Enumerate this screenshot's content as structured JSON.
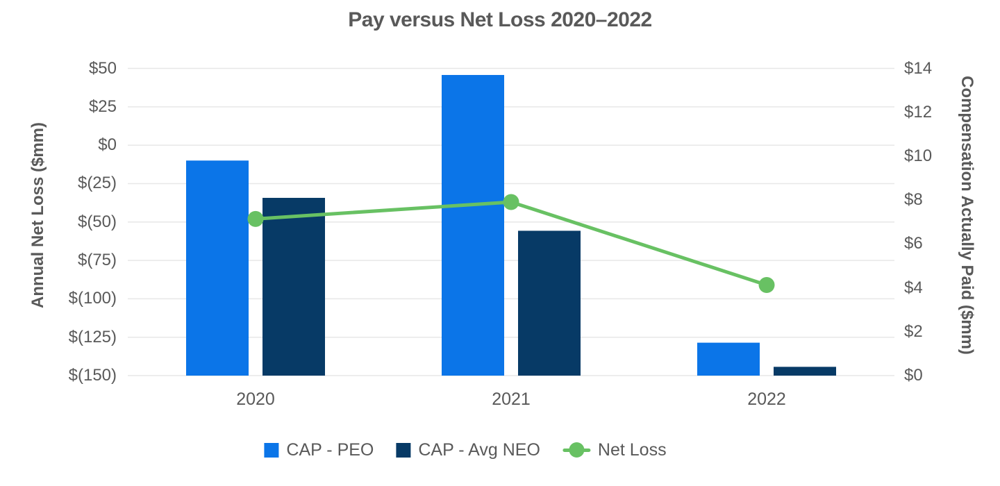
{
  "chart_data": {
    "type": "combo-bar-line",
    "title": "Pay versus Net Loss 2020–2022",
    "categories": [
      "2020",
      "2021",
      "2022"
    ],
    "series": [
      {
        "name": "CAP - PEO",
        "type": "bar",
        "axis": "right",
        "color": "#0b75e8",
        "values": [
          9.8,
          13.7,
          1.5
        ]
      },
      {
        "name": "CAP - Avg NEO",
        "type": "bar",
        "axis": "right",
        "color": "#073a66",
        "values": [
          8.1,
          6.6,
          0.4
        ]
      },
      {
        "name": "Net Loss",
        "type": "line",
        "axis": "left",
        "color": "#68c163",
        "values": [
          -48,
          -37,
          -91
        ]
      }
    ],
    "left_axis": {
      "label": "Annual Net Loss ($mm)",
      "ticks": [
        "$50",
        "$25",
        "$0",
        "$(25)",
        "$(50)",
        "$(75)",
        "$(100)",
        "$(125)",
        "$(150)"
      ],
      "range": [
        50,
        -150
      ]
    },
    "right_axis": {
      "label": "Compensation Actually Paid ($mm)",
      "ticks": [
        "$14",
        "$12",
        "$10",
        "$8",
        "$6",
        "$4",
        "$2",
        "$0"
      ],
      "range": [
        14,
        0
      ]
    },
    "grid": true,
    "legend_position": "bottom",
    "colors": {
      "grid": "#e7e7e7",
      "text": "#595959",
      "background": "#ffffff"
    }
  }
}
